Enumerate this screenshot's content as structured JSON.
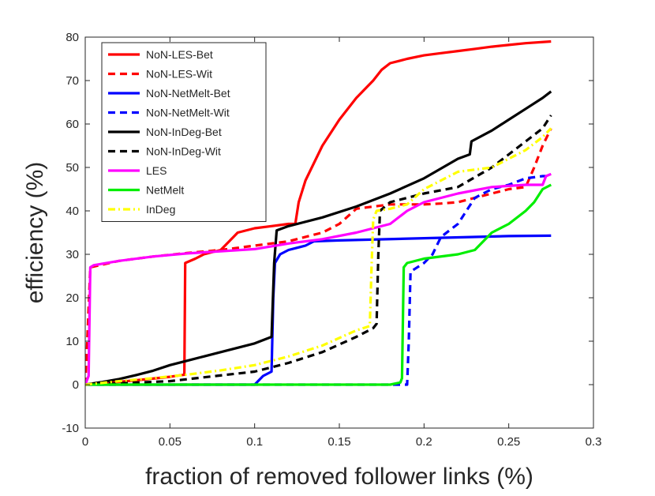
{
  "chart_data": {
    "type": "line",
    "title": "",
    "xlabel": "fraction of removed follower links (%)",
    "ylabel": "efficiency (%)",
    "xlim": [
      0,
      0.3
    ],
    "ylim": [
      -10,
      80
    ],
    "xticks": [
      0,
      0.05,
      0.1,
      0.15,
      0.2,
      0.25,
      0.3
    ],
    "xtick_labels": [
      "0",
      "0.05",
      "0.1",
      "0.15",
      "0.2",
      "0.25",
      "0.3"
    ],
    "yticks": [
      -10,
      0,
      10,
      20,
      30,
      40,
      50,
      60,
      70,
      80
    ],
    "ytick_labels": [
      "-10",
      "0",
      "10",
      "20",
      "30",
      "40",
      "50",
      "60",
      "70",
      "80"
    ],
    "grid": false,
    "legend_position": "top-left",
    "series": [
      {
        "name": "NoN-LES-Bet",
        "color": "#ff0000",
        "dash": "solid",
        "x": [
          0,
          0.01,
          0.03,
          0.05,
          0.0585,
          0.059,
          0.065,
          0.07,
          0.08,
          0.085,
          0.09,
          0.1,
          0.11,
          0.12,
          0.124,
          0.126,
          0.13,
          0.14,
          0.15,
          0.16,
          0.17,
          0.175,
          0.18,
          0.185,
          0.19,
          0.2,
          0.21,
          0.22,
          0.23,
          0.24,
          0.25,
          0.26,
          0.275
        ],
        "y": [
          0,
          0.3,
          1,
          1.8,
          2.3,
          28,
          29,
          30,
          31,
          33,
          35,
          36,
          36.5,
          37,
          37,
          42,
          47,
          55,
          61,
          66,
          70,
          72.5,
          74,
          74.5,
          75,
          75.8,
          76.3,
          76.8,
          77.3,
          77.8,
          78.2,
          78.6,
          79
        ]
      },
      {
        "name": "NoN-LES-Wit",
        "color": "#ff0000",
        "dash": "dashed",
        "x": [
          0,
          0.001,
          0.003,
          0.02,
          0.04,
          0.06,
          0.08,
          0.1,
          0.12,
          0.14,
          0.15,
          0.16,
          0.18,
          0.19,
          0.2,
          0.21,
          0.22,
          0.23,
          0.24,
          0.25,
          0.26,
          0.265,
          0.27,
          0.275
        ],
        "y": [
          0,
          8,
          27,
          28.5,
          29.5,
          30.3,
          31,
          32,
          33,
          35,
          37,
          40.5,
          41.5,
          41.5,
          41.5,
          41.7,
          42,
          43,
          44,
          45,
          45.5,
          50,
          55,
          59
        ]
      },
      {
        "name": "NoN-NetMelt-Bet",
        "color": "#0000ff",
        "dash": "solid",
        "x": [
          0,
          0.05,
          0.1,
          0.105,
          0.11,
          0.111,
          0.112,
          0.115,
          0.12,
          0.13,
          0.135,
          0.15,
          0.2,
          0.25,
          0.275
        ],
        "y": [
          0,
          0,
          0,
          2,
          3,
          20,
          28,
          30,
          31,
          32,
          33,
          33.2,
          33.7,
          34.2,
          34.3
        ]
      },
      {
        "name": "NoN-NetMelt-Wit",
        "color": "#0000ff",
        "dash": "dashed",
        "x": [
          0,
          0.05,
          0.1,
          0.15,
          0.189,
          0.19,
          0.191,
          0.192,
          0.2,
          0.205,
          0.21,
          0.22,
          0.23,
          0.24,
          0.25,
          0.26,
          0.27,
          0.275
        ],
        "y": [
          0,
          0,
          0,
          0,
          0,
          0,
          10,
          26,
          28,
          30,
          34,
          37,
          43,
          45,
          46,
          47.5,
          48,
          48
        ]
      },
      {
        "name": "NoN-InDeg-Bet",
        "color": "#000000",
        "dash": "solid",
        "x": [
          0,
          0.01,
          0.02,
          0.03,
          0.04,
          0.05,
          0.06,
          0.07,
          0.08,
          0.09,
          0.1,
          0.11,
          0.1115,
          0.113,
          0.12,
          0.14,
          0.16,
          0.18,
          0.2,
          0.22,
          0.227,
          0.228,
          0.24,
          0.25,
          0.26,
          0.27,
          0.275
        ],
        "y": [
          0,
          0.6,
          1.3,
          2.2,
          3.2,
          4.5,
          5.5,
          6.5,
          7.5,
          8.5,
          9.5,
          11,
          28,
          35.5,
          36.5,
          38.5,
          41,
          44,
          47.5,
          52,
          53,
          56,
          58.5,
          61,
          63.5,
          66,
          67.5
        ]
      },
      {
        "name": "NoN-InDeg-Wit",
        "color": "#000000",
        "dash": "dashed",
        "x": [
          0,
          0.05,
          0.1,
          0.12,
          0.14,
          0.16,
          0.17,
          0.172,
          0.173,
          0.174,
          0.18,
          0.2,
          0.22,
          0.24,
          0.25,
          0.26,
          0.27,
          0.275
        ],
        "y": [
          0,
          0.8,
          3,
          5,
          7.5,
          11,
          13,
          14,
          30,
          40,
          42,
          44,
          45.5,
          50,
          53,
          56,
          59,
          62
        ]
      },
      {
        "name": "LES",
        "color": "#ff00ff",
        "dash": "solid",
        "x": [
          0,
          0.002,
          0.003,
          0.005,
          0.02,
          0.04,
          0.06,
          0.08,
          0.1,
          0.12,
          0.14,
          0.16,
          0.18,
          0.19,
          0.2,
          0.22,
          0.24,
          0.26,
          0.27,
          0.272,
          0.275
        ],
        "y": [
          0,
          2,
          27,
          27.5,
          28.5,
          29.5,
          30.2,
          30.7,
          31.2,
          32.5,
          33.5,
          35,
          37,
          40,
          42,
          44,
          45.5,
          46,
          46,
          48,
          48.5
        ]
      },
      {
        "name": "NetMelt",
        "color": "#00ee00",
        "dash": "solid",
        "x": [
          0,
          0.05,
          0.1,
          0.15,
          0.18,
          0.186,
          0.187,
          0.188,
          0.19,
          0.2,
          0.22,
          0.23,
          0.24,
          0.25,
          0.26,
          0.265,
          0.27,
          0.275
        ],
        "y": [
          0,
          0,
          0,
          0,
          0,
          0.5,
          1.5,
          27,
          28,
          29,
          30,
          31,
          35,
          37,
          40,
          42,
          45,
          46
        ]
      },
      {
        "name": "InDeg",
        "color": "#ffff00",
        "dash": "dashdot",
        "x": [
          0,
          0.02,
          0.04,
          0.06,
          0.08,
          0.1,
          0.12,
          0.14,
          0.16,
          0.168,
          0.169,
          0.17,
          0.172,
          0.18,
          0.19,
          0.2,
          0.21,
          0.22,
          0.24,
          0.25,
          0.26,
          0.27,
          0.275
        ],
        "y": [
          0,
          0.8,
          1.5,
          2.3,
          3.3,
          4.5,
          6.5,
          9,
          12.5,
          13.5,
          27,
          38,
          40,
          40.5,
          41.5,
          45,
          47,
          49,
          50,
          52,
          54,
          57,
          59
        ]
      }
    ]
  }
}
